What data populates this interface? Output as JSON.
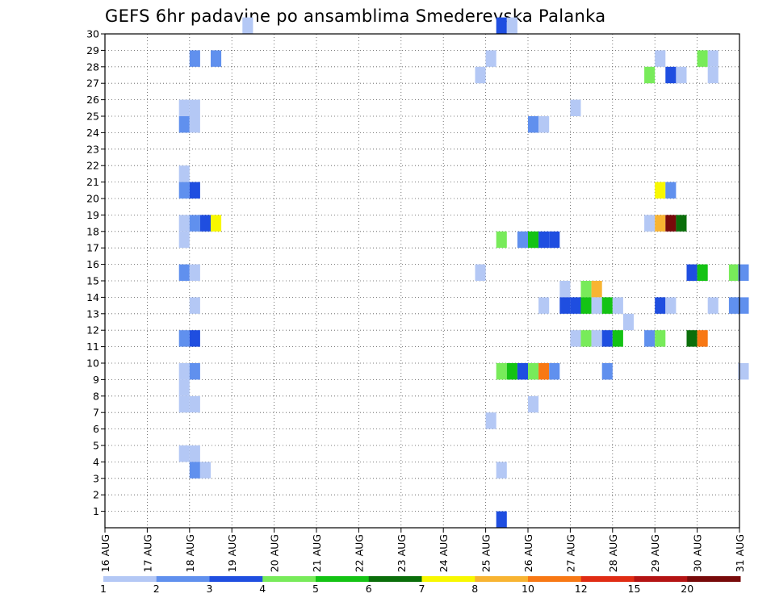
{
  "chart_data": {
    "type": "heatmap",
    "title": "GEFS 6hr padavine po ansamblima Smederevska Palanka",
    "x_tick_labels": [
      "16 AUG",
      "17 AUG",
      "18 AUG",
      "19 AUG",
      "20 AUG",
      "21 AUG",
      "22 AUG",
      "23 AUG",
      "24 AUG",
      "25 AUG",
      "26 AUG",
      "27 AUG",
      "28 AUG",
      "29 AUG",
      "30 AUG",
      "31 AUG"
    ],
    "y_tick_labels": [
      "1",
      "2",
      "3",
      "4",
      "5",
      "6",
      "7",
      "8",
      "9",
      "10",
      "11",
      "12",
      "13",
      "14",
      "15",
      "16",
      "17",
      "18",
      "19",
      "20",
      "21",
      "22",
      "23",
      "24",
      "25",
      "26",
      "27",
      "28",
      "29",
      "30"
    ],
    "xlim_days": [
      0,
      15
    ],
    "ylim_members": [
      0,
      30
    ],
    "grid": true,
    "color_scale": {
      "labels": [
        "1",
        "2",
        "3",
        "4",
        "5",
        "6",
        "7",
        "8",
        "10",
        "12",
        "15",
        "20"
      ],
      "colors": [
        "#b4c8f5",
        "#6090ee",
        "#1f4ee0",
        "#78eb5a",
        "#14c314",
        "#0a6e0a",
        "#f8f800",
        "#f8b432",
        "#f87814",
        "#e02c14",
        "#b41414",
        "#780a0a"
      ]
    },
    "cells": [
      {
        "t": 3.25,
        "m": 30,
        "c": 0
      },
      {
        "t": 9.25,
        "m": 30,
        "c": 2
      },
      {
        "t": 9.5,
        "m": 30,
        "c": 0
      },
      {
        "t": 2.0,
        "m": 28,
        "c": 1
      },
      {
        "t": 2.5,
        "m": 28,
        "c": 1
      },
      {
        "t": 9.0,
        "m": 28,
        "c": 0
      },
      {
        "t": 13.0,
        "m": 28,
        "c": 0
      },
      {
        "t": 14.0,
        "m": 28,
        "c": 3
      },
      {
        "t": 14.25,
        "m": 28,
        "c": 0
      },
      {
        "t": 8.75,
        "m": 27,
        "c": 0
      },
      {
        "t": 12.75,
        "m": 27,
        "c": 3
      },
      {
        "t": 13.25,
        "m": 27,
        "c": 2
      },
      {
        "t": 13.5,
        "m": 27,
        "c": 0
      },
      {
        "t": 14.25,
        "m": 27,
        "c": 0
      },
      {
        "t": 1.75,
        "m": 25,
        "c": 0
      },
      {
        "t": 2.0,
        "m": 25,
        "c": 0
      },
      {
        "t": 11.0,
        "m": 25,
        "c": 0
      },
      {
        "t": 1.75,
        "m": 24,
        "c": 1
      },
      {
        "t": 2.0,
        "m": 24,
        "c": 0
      },
      {
        "t": 10.0,
        "m": 24,
        "c": 1
      },
      {
        "t": 10.25,
        "m": 24,
        "c": 0
      },
      {
        "t": 1.75,
        "m": 21,
        "c": 0
      },
      {
        "t": 1.75,
        "m": 20,
        "c": 1
      },
      {
        "t": 2.0,
        "m": 20,
        "c": 2
      },
      {
        "t": 13.0,
        "m": 20,
        "c": 6
      },
      {
        "t": 13.25,
        "m": 20,
        "c": 1
      },
      {
        "t": 1.75,
        "m": 18,
        "c": 0
      },
      {
        "t": 2.0,
        "m": 18,
        "c": 1
      },
      {
        "t": 2.25,
        "m": 18,
        "c": 2
      },
      {
        "t": 2.5,
        "m": 18,
        "c": 6
      },
      {
        "t": 12.75,
        "m": 18,
        "c": 0
      },
      {
        "t": 13.0,
        "m": 18,
        "c": 7
      },
      {
        "t": 13.25,
        "m": 18,
        "c": 11
      },
      {
        "t": 13.5,
        "m": 18,
        "c": 5
      },
      {
        "t": 1.75,
        "m": 17,
        "c": 0
      },
      {
        "t": 9.25,
        "m": 17,
        "c": 3
      },
      {
        "t": 9.75,
        "m": 17,
        "c": 1
      },
      {
        "t": 10.0,
        "m": 17,
        "c": 4
      },
      {
        "t": 10.25,
        "m": 17,
        "c": 2
      },
      {
        "t": 10.5,
        "m": 17,
        "c": 2
      },
      {
        "t": 1.75,
        "m": 15,
        "c": 1
      },
      {
        "t": 2.0,
        "m": 15,
        "c": 0
      },
      {
        "t": 8.75,
        "m": 15,
        "c": 0
      },
      {
        "t": 13.75,
        "m": 15,
        "c": 2
      },
      {
        "t": 14.0,
        "m": 15,
        "c": 4
      },
      {
        "t": 14.75,
        "m": 15,
        "c": 3
      },
      {
        "t": 14.97,
        "m": 15,
        "c": 1
      },
      {
        "t": 10.75,
        "m": 14,
        "c": 0
      },
      {
        "t": 11.25,
        "m": 14,
        "c": 3
      },
      {
        "t": 11.5,
        "m": 14,
        "c": 7
      },
      {
        "t": 2.0,
        "m": 13,
        "c": 0
      },
      {
        "t": 10.25,
        "m": 13,
        "c": 0
      },
      {
        "t": 10.75,
        "m": 13,
        "c": 2
      },
      {
        "t": 11.0,
        "m": 13,
        "c": 2
      },
      {
        "t": 11.25,
        "m": 13,
        "c": 4
      },
      {
        "t": 11.5,
        "m": 13,
        "c": 0
      },
      {
        "t": 11.75,
        "m": 13,
        "c": 4
      },
      {
        "t": 12.0,
        "m": 13,
        "c": 0
      },
      {
        "t": 13.0,
        "m": 13,
        "c": 2
      },
      {
        "t": 13.25,
        "m": 13,
        "c": 0
      },
      {
        "t": 14.25,
        "m": 13,
        "c": 0
      },
      {
        "t": 14.75,
        "m": 13,
        "c": 1
      },
      {
        "t": 14.97,
        "m": 13,
        "c": 1
      },
      {
        "t": 12.25,
        "m": 12,
        "c": 0
      },
      {
        "t": 1.75,
        "m": 11,
        "c": 1
      },
      {
        "t": 2.0,
        "m": 11,
        "c": 2
      },
      {
        "t": 11.0,
        "m": 11,
        "c": 0
      },
      {
        "t": 11.25,
        "m": 11,
        "c": 3
      },
      {
        "t": 11.5,
        "m": 11,
        "c": 0
      },
      {
        "t": 11.75,
        "m": 11,
        "c": 2
      },
      {
        "t": 12.0,
        "m": 11,
        "c": 4
      },
      {
        "t": 12.75,
        "m": 11,
        "c": 1
      },
      {
        "t": 13.0,
        "m": 11,
        "c": 3
      },
      {
        "t": 13.75,
        "m": 11,
        "c": 5
      },
      {
        "t": 14.0,
        "m": 11,
        "c": 8
      },
      {
        "t": 1.75,
        "m": 9,
        "c": 0
      },
      {
        "t": 2.0,
        "m": 9,
        "c": 1
      },
      {
        "t": 9.25,
        "m": 9,
        "c": 3
      },
      {
        "t": 9.5,
        "m": 9,
        "c": 4
      },
      {
        "t": 9.75,
        "m": 9,
        "c": 2
      },
      {
        "t": 10.0,
        "m": 9,
        "c": 3
      },
      {
        "t": 10.25,
        "m": 9,
        "c": 8
      },
      {
        "t": 10.5,
        "m": 9,
        "c": 1
      },
      {
        "t": 11.75,
        "m": 9,
        "c": 1
      },
      {
        "t": 14.97,
        "m": 9,
        "c": 0
      },
      {
        "t": 1.75,
        "m": 8,
        "c": 0
      },
      {
        "t": 1.75,
        "m": 7,
        "c": 0
      },
      {
        "t": 2.0,
        "m": 7,
        "c": 0
      },
      {
        "t": 10.0,
        "m": 7,
        "c": 0
      },
      {
        "t": 9.0,
        "m": 6,
        "c": 0
      },
      {
        "t": 1.75,
        "m": 4,
        "c": 0
      },
      {
        "t": 2.0,
        "m": 4,
        "c": 0
      },
      {
        "t": 2.0,
        "m": 3,
        "c": 1
      },
      {
        "t": 2.25,
        "m": 3,
        "c": 0
      },
      {
        "t": 9.25,
        "m": 3,
        "c": 0
      },
      {
        "t": 9.25,
        "m": 0,
        "c": 2
      }
    ]
  }
}
